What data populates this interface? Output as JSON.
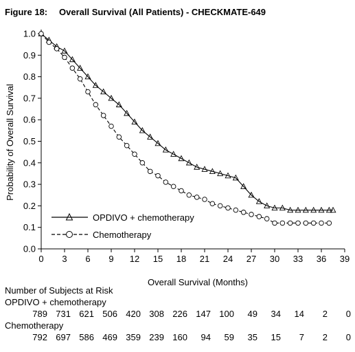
{
  "figure_label": "Figure 18:",
  "chart_data": {
    "type": "line",
    "title": "Overall Survival (All Patients) - CHECKMATE-649",
    "xlabel": "Overall Survival (Months)",
    "ylabel": "Probability of Overall Survival",
    "xlim": [
      0,
      39
    ],
    "ylim": [
      0.0,
      1.0
    ],
    "x_ticks": [
      "0",
      "3",
      "6",
      "9",
      "12",
      "15",
      "18",
      "21",
      "24",
      "27",
      "30",
      "33",
      "36",
      "39"
    ],
    "y_ticks": [
      "0.0",
      "0.1",
      "0.2",
      "0.3",
      "0.4",
      "0.5",
      "0.6",
      "0.7",
      "0.8",
      "0.9",
      "1.0"
    ],
    "legend_position": "bottom-left",
    "series": [
      {
        "name": "OPDIVO + chemotherapy",
        "marker": "triangle",
        "line_style": "solid",
        "color": "#000000",
        "x": [
          0,
          1,
          2,
          3,
          4,
          5,
          6,
          7,
          8,
          9,
          10,
          11,
          12,
          13,
          14,
          15,
          16,
          17,
          18,
          19,
          20,
          21,
          22,
          23,
          24,
          25,
          26,
          27,
          28,
          29,
          30,
          31,
          32,
          33,
          34,
          35,
          36,
          37,
          37.5
        ],
        "y": [
          1.0,
          0.97,
          0.94,
          0.92,
          0.88,
          0.84,
          0.8,
          0.76,
          0.73,
          0.7,
          0.67,
          0.63,
          0.59,
          0.55,
          0.52,
          0.49,
          0.46,
          0.44,
          0.42,
          0.4,
          0.38,
          0.37,
          0.36,
          0.35,
          0.34,
          0.33,
          0.29,
          0.25,
          0.22,
          0.2,
          0.19,
          0.19,
          0.18,
          0.18,
          0.18,
          0.18,
          0.18,
          0.18,
          0.18
        ]
      },
      {
        "name": "Chemotherapy",
        "marker": "circle",
        "line_style": "dashed",
        "color": "#000000",
        "x": [
          0,
          1,
          2,
          3,
          4,
          5,
          6,
          7,
          8,
          9,
          10,
          11,
          12,
          13,
          14,
          15,
          16,
          17,
          18,
          19,
          20,
          21,
          22,
          23,
          24,
          25,
          26,
          27,
          28,
          29,
          30,
          31,
          32,
          33,
          34,
          35,
          36,
          37
        ],
        "y": [
          1.0,
          0.96,
          0.93,
          0.89,
          0.84,
          0.79,
          0.73,
          0.67,
          0.62,
          0.57,
          0.52,
          0.48,
          0.44,
          0.4,
          0.36,
          0.34,
          0.31,
          0.29,
          0.27,
          0.25,
          0.24,
          0.23,
          0.21,
          0.2,
          0.19,
          0.18,
          0.17,
          0.16,
          0.15,
          0.14,
          0.12,
          0.12,
          0.12,
          0.12,
          0.12,
          0.12,
          0.12,
          0.12
        ]
      }
    ],
    "risk_table": {
      "heading": "Number of Subjects at Risk",
      "rows": [
        {
          "label": "OPDIVO + chemotherapy",
          "values": [
            "789",
            "731",
            "621",
            "506",
            "420",
            "308",
            "226",
            "147",
            "100",
            "49",
            "34",
            "14",
            "2",
            "0"
          ]
        },
        {
          "label": "Chemotherapy",
          "values": [
            "792",
            "697",
            "586",
            "469",
            "359",
            "239",
            "160",
            "94",
            "59",
            "35",
            "15",
            "7",
            "2",
            "0"
          ]
        }
      ]
    }
  }
}
